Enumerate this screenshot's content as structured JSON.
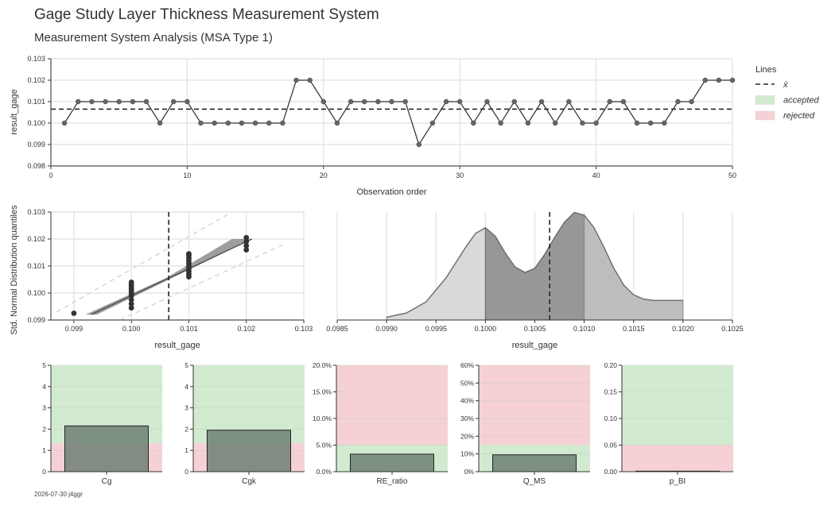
{
  "header": {
    "title": "Gage Study Layer Thickness Measurement System",
    "subtitle": "Measurement System Analysis (MSA Type 1)"
  },
  "footer": {
    "stamp": "2026-07-30 j4ggr"
  },
  "legend": {
    "title": "Lines",
    "items": [
      {
        "label": "x̄",
        "style": "dashed",
        "color": "#262626"
      },
      {
        "label": "accepted",
        "style": "patch",
        "color": "#d2ead0"
      },
      {
        "label": "rejected",
        "style": "patch",
        "color": "#f5d1d5"
      }
    ]
  },
  "colors": {
    "accepted": "#d2ead0",
    "rejected": "#f5d1d5",
    "line": "#3b3b3b",
    "bar": "#6e8074",
    "grid": "#e6e6e6"
  },
  "chart_data": [
    {
      "id": "run_chart",
      "type": "line",
      "xlabel": "Observation order",
      "ylabel": "result_gage",
      "xlim": [
        0,
        50
      ],
      "ylim": [
        0.098,
        0.103
      ],
      "xticks": [
        "0",
        "10",
        "20",
        "30",
        "40",
        "50"
      ],
      "yticks": [
        "0.098",
        "0.099",
        "0.100",
        "0.101",
        "0.102",
        "0.103"
      ],
      "mean": 0.10065,
      "x": [
        1,
        2,
        3,
        4,
        5,
        6,
        7,
        8,
        9,
        10,
        11,
        12,
        13,
        14,
        15,
        16,
        17,
        18,
        19,
        20,
        21,
        22,
        23,
        24,
        25,
        26,
        27,
        28,
        29,
        30,
        31,
        32,
        33,
        34,
        35,
        36,
        37,
        38,
        39,
        40,
        41,
        42,
        43,
        44,
        45,
        46,
        47,
        48,
        49,
        50
      ],
      "y": [
        0.1,
        0.101,
        0.101,
        0.101,
        0.101,
        0.101,
        0.101,
        0.1,
        0.101,
        0.101,
        0.1,
        0.1,
        0.1,
        0.1,
        0.1,
        0.1,
        0.1,
        0.102,
        0.102,
        0.101,
        0.1,
        0.101,
        0.101,
        0.101,
        0.101,
        0.101,
        0.099,
        0.1,
        0.101,
        0.101,
        0.1,
        0.101,
        0.1,
        0.101,
        0.1,
        0.101,
        0.1,
        0.101,
        0.1,
        0.1,
        0.101,
        0.101,
        0.1,
        0.1,
        0.1,
        0.101,
        0.101,
        0.102,
        0.102,
        0.102
      ]
    },
    {
      "id": "probability_plot",
      "type": "scatter",
      "xlabel": "result_gage",
      "ylabel": "Std. Normal Distribution quantiles",
      "xlim": [
        0.0986,
        0.103
      ],
      "ylim": [
        0.099,
        0.103
      ],
      "xticks": [
        "0.099",
        "0.100",
        "0.101",
        "0.102",
        "0.103"
      ],
      "yticks": [
        "0.099",
        "0.100",
        "0.101",
        "0.102",
        "0.103"
      ],
      "mean": 0.10065,
      "groups": [
        {
          "x": 0.099,
          "y": [
            0.09925
          ]
        },
        {
          "x": 0.1,
          "y": [
            0.09945,
            0.0996,
            0.09975,
            0.0999,
            0.1,
            0.10008,
            0.10016,
            0.10024,
            0.10032,
            0.1004
          ]
        },
        {
          "x": 0.101,
          "y": [
            0.1006,
            0.1007,
            0.1008,
            0.1009,
            0.101,
            0.1011,
            0.1012,
            0.1013,
            0.1014,
            0.10145
          ]
        },
        {
          "x": 0.102,
          "y": [
            0.1016,
            0.10175,
            0.1019,
            0.10205
          ]
        }
      ],
      "fit_line": [
        [
          0.0993,
          0.0992
        ],
        [
          0.1021,
          0.102
        ]
      ]
    },
    {
      "id": "kde",
      "type": "area",
      "xlabel": "result_gage",
      "xlim": [
        0.0985,
        0.1025
      ],
      "xticks": [
        "0.0985",
        "0.0990",
        "0.0995",
        "0.1000",
        "0.1005",
        "0.1010",
        "0.1015",
        "0.1020",
        "0.1025"
      ],
      "mean": 0.10065,
      "density": [
        [
          0.099,
          0.02
        ],
        [
          0.0992,
          0.05
        ],
        [
          0.0994,
          0.13
        ],
        [
          0.0996,
          0.3
        ],
        [
          0.0998,
          0.52
        ],
        [
          0.0999,
          0.62
        ],
        [
          0.1,
          0.66
        ],
        [
          0.1001,
          0.6
        ],
        [
          0.1002,
          0.48
        ],
        [
          0.1003,
          0.38
        ],
        [
          0.1004,
          0.34
        ],
        [
          0.1005,
          0.37
        ],
        [
          0.1006,
          0.47
        ],
        [
          0.1007,
          0.59
        ],
        [
          0.1008,
          0.7
        ],
        [
          0.1009,
          0.77
        ],
        [
          0.101,
          0.75
        ],
        [
          0.1011,
          0.66
        ],
        [
          0.1012,
          0.52
        ],
        [
          0.1013,
          0.37
        ],
        [
          0.1014,
          0.25
        ],
        [
          0.1015,
          0.18
        ],
        [
          0.1016,
          0.15
        ],
        [
          0.1017,
          0.14
        ],
        [
          0.1018,
          0.14
        ],
        [
          0.1019,
          0.14
        ],
        [
          0.102,
          0.14
        ]
      ]
    },
    {
      "id": "cg",
      "type": "bar",
      "xlabel": "Cg",
      "ylim": [
        0,
        5
      ],
      "yticks": [
        "0",
        "1",
        "2",
        "3",
        "4",
        "5"
      ],
      "value": 2.15,
      "limit": 1.33
    },
    {
      "id": "cgk",
      "type": "bar",
      "xlabel": "Cgk",
      "ylim": [
        0,
        5
      ],
      "yticks": [
        "0",
        "1",
        "2",
        "3",
        "4",
        "5"
      ],
      "value": 1.95,
      "limit": 1.33
    },
    {
      "id": "re_ratio",
      "type": "bar",
      "xlabel": "RE_ratio",
      "ylim": [
        0,
        0.2
      ],
      "yticks": [
        "0.0%",
        "5.0%",
        "10.0%",
        "15.0%",
        "20.0%"
      ],
      "value": 0.033,
      "limit": 0.05
    },
    {
      "id": "q_ms",
      "type": "bar",
      "xlabel": "Q_MS",
      "ylim": [
        0,
        0.6
      ],
      "yticks": [
        "0%",
        "10%",
        "20%",
        "30%",
        "40%",
        "50%",
        "60%"
      ],
      "value": 0.095,
      "limit": 0.15
    },
    {
      "id": "p_bi",
      "type": "bar",
      "xlabel": "p_BI",
      "ylim": [
        0,
        0.2
      ],
      "yticks": [
        "0.00",
        "0.05",
        "0.10",
        "0.15",
        "0.20"
      ],
      "value": 0.001,
      "limit": 0.05
    }
  ]
}
